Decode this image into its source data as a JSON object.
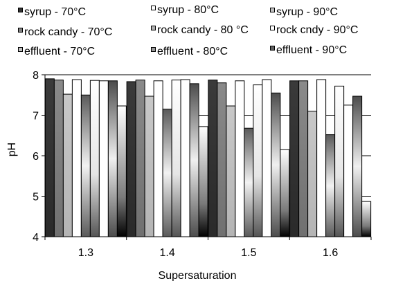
{
  "chart_data": {
    "type": "bar",
    "xlabel": "Supersaturation",
    "ylabel": "pH",
    "ylim": [
      4,
      8
    ],
    "yticks": [
      "4",
      "5",
      "6",
      "7",
      "8"
    ],
    "categories": [
      "1.3",
      "1.4",
      "1.5",
      "1.6"
    ],
    "grid": "horizontal major gridlines",
    "legend_position": "top",
    "series": [
      {
        "name": "syrup - 70°C",
        "values": [
          7.9,
          7.83,
          7.87,
          7.85
        ]
      },
      {
        "name": "rock candy - 70°C",
        "values": [
          7.87,
          7.87,
          7.8,
          7.85
        ]
      },
      {
        "name": "effluent - 70°C",
        "values": [
          7.52,
          7.47,
          7.23,
          7.1
        ]
      },
      {
        "name": "syrup - 80°C",
        "values": [
          7.88,
          7.85,
          7.85,
          7.88
        ]
      },
      {
        "name": "rock candy - 80 °C",
        "values": [
          7.5,
          7.15,
          6.68,
          6.52
        ]
      },
      {
        "name": "effluent - 80°C",
        "values": [
          7.86,
          7.87,
          7.75,
          7.72
        ]
      },
      {
        "name": "syrup - 90°C",
        "values": [
          7.85,
          7.88,
          7.88,
          7.25
        ]
      },
      {
        "name": "rock cndy - 90°C",
        "values": [
          7.85,
          7.78,
          7.55,
          7.47
        ]
      },
      {
        "name": "effluent - 90°C",
        "values": [
          7.23,
          6.72,
          6.15,
          4.87
        ]
      }
    ],
    "legend": [
      {
        "label": "syrup - 70°C",
        "style": "dark"
      },
      {
        "label": "syrup - 80°C",
        "style": "white"
      },
      {
        "label": "syrup - 90°C",
        "style": "lightgray"
      },
      {
        "label": "rock candy - 70°C",
        "style": "midgray"
      },
      {
        "label": "rock candy - 80 °C",
        "style": "silver"
      },
      {
        "label": "rock cndy - 90°C",
        "style": "white"
      },
      {
        "label": "effluent - 70°C",
        "style": "lightgray"
      },
      {
        "label": "effluent - 80°C",
        "style": "gray"
      },
      {
        "label": "effluent - 90°C",
        "style": "darkgray"
      }
    ],
    "colors": {
      "dark": "#333333",
      "midgray": "#808080",
      "lightgray": "#c0c0c0",
      "white": "#ffffff",
      "silver": "#b0b0b0",
      "gray": "#999999",
      "darkgray": "#606060",
      "grid": "#000000"
    }
  }
}
